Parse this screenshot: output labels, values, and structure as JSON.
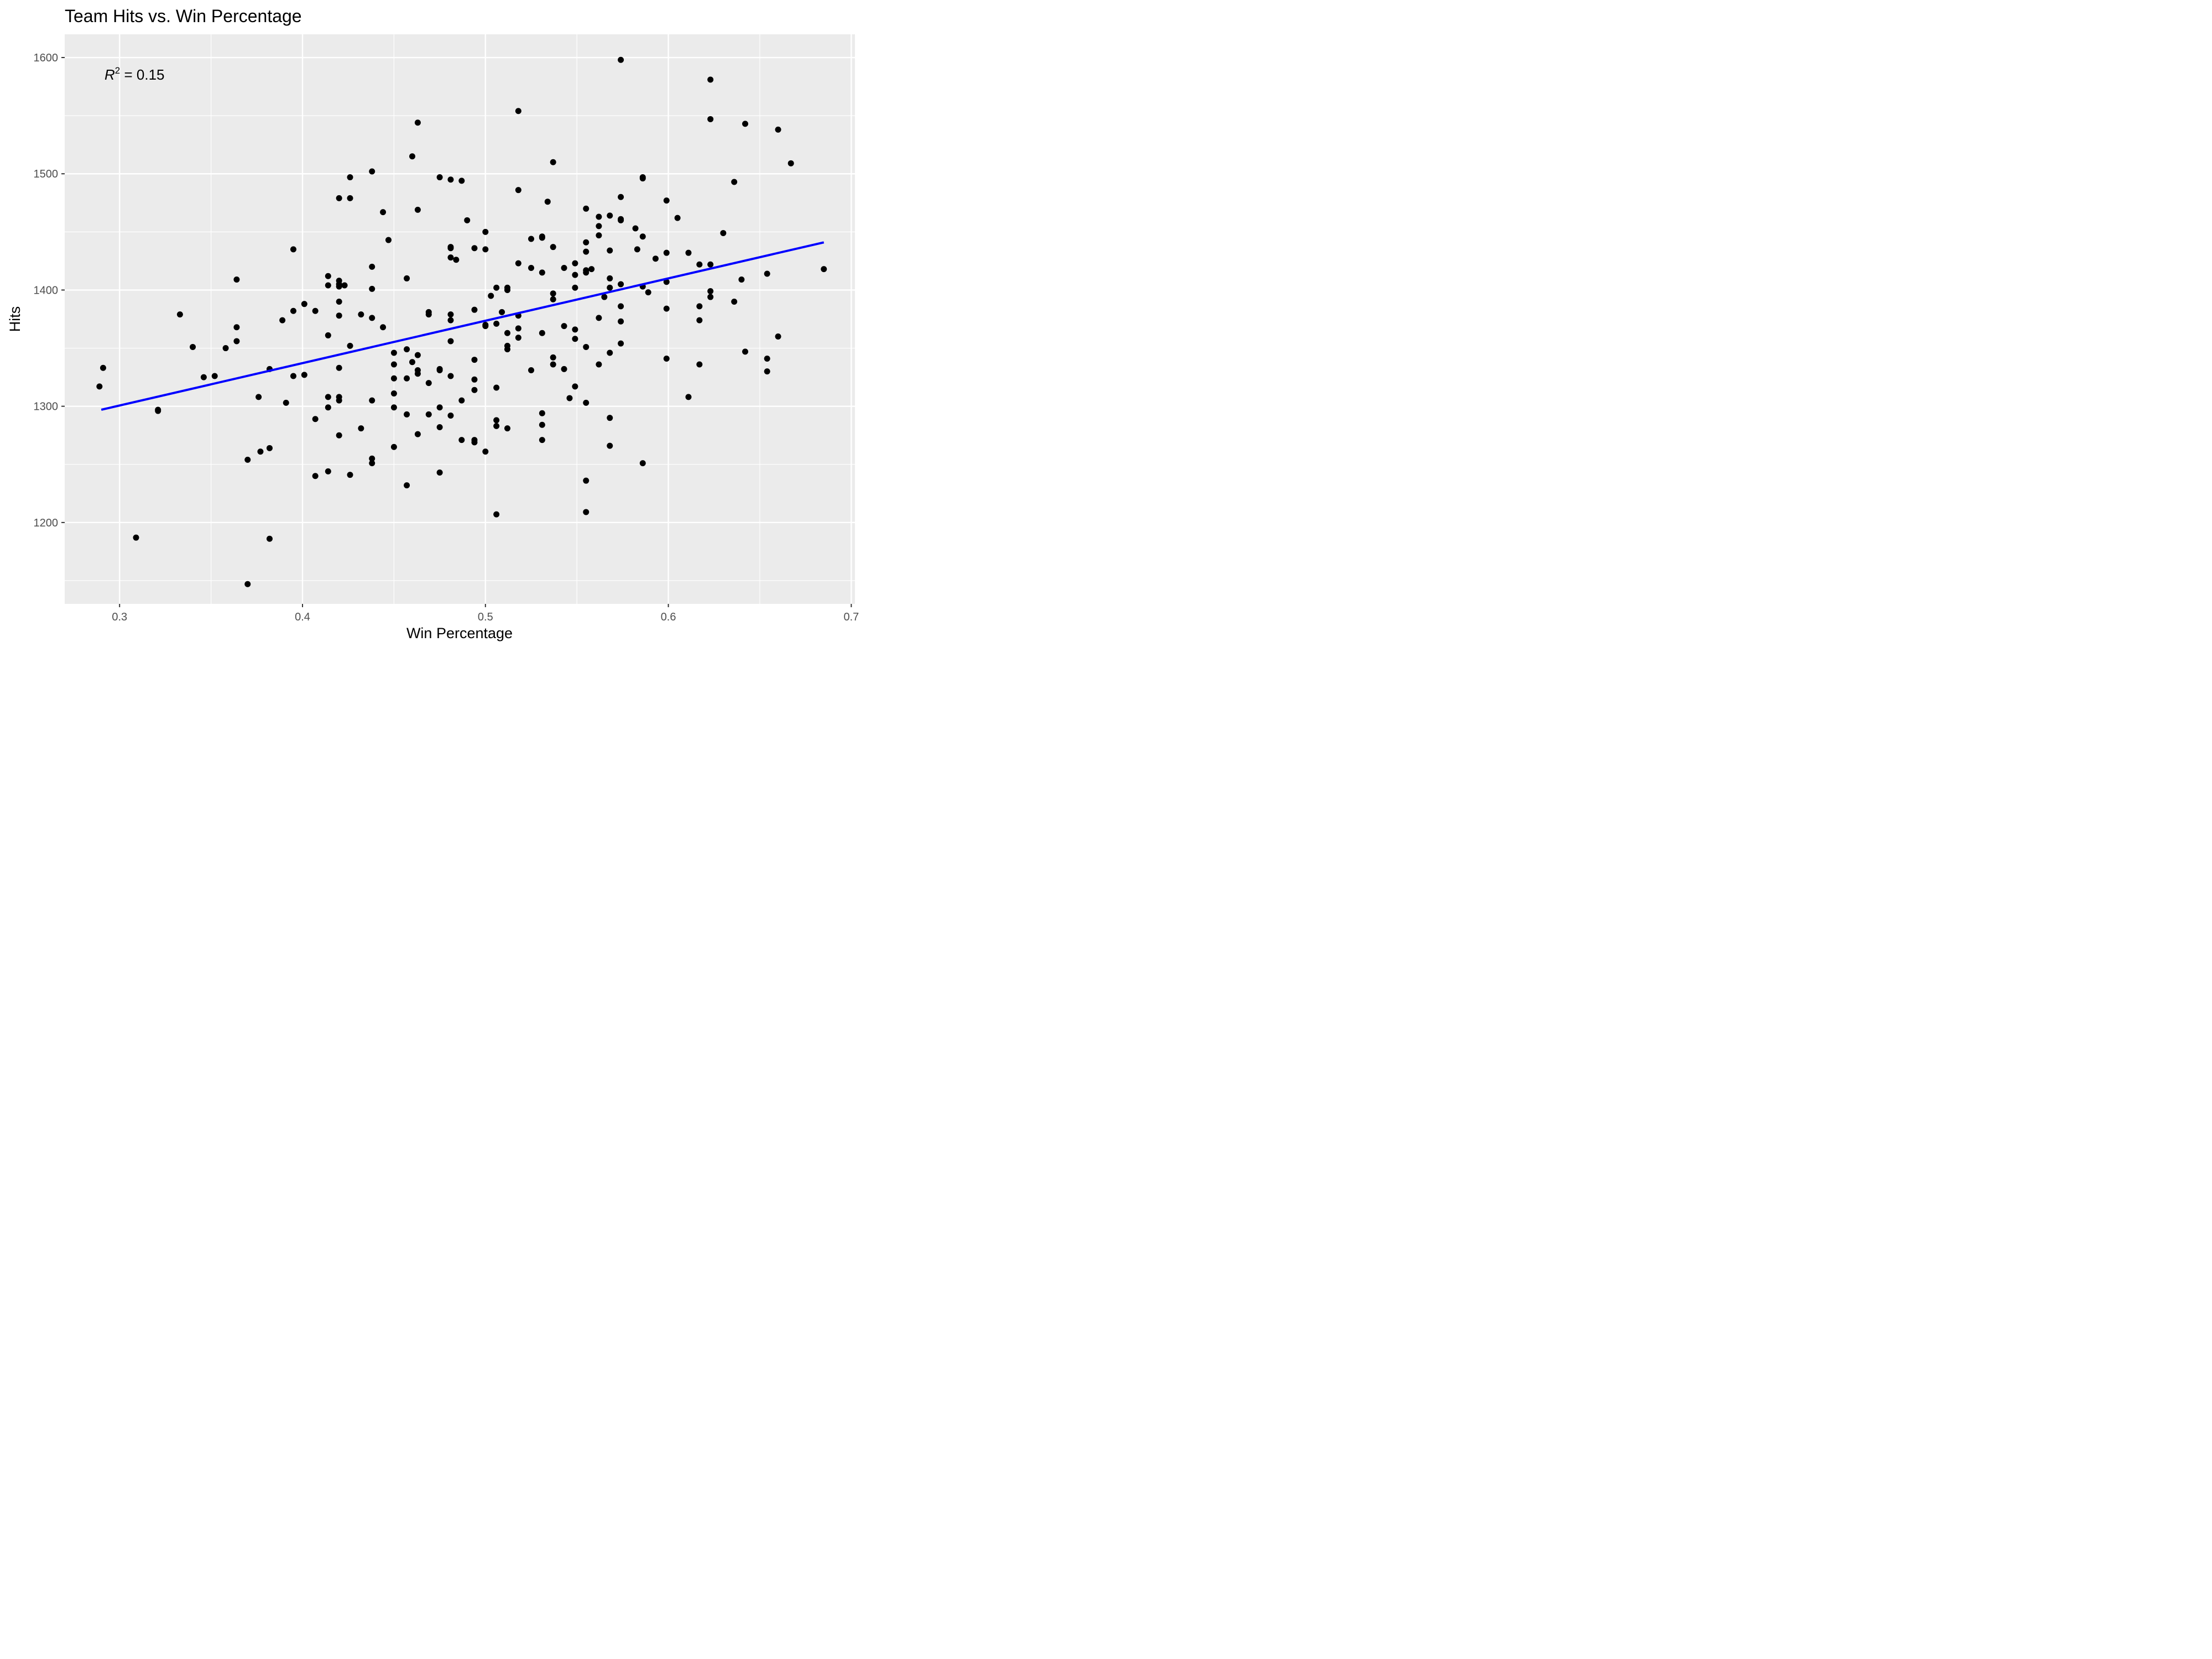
{
  "chart_data": {
    "type": "scatter",
    "title": "Team Hits vs. Win Percentage",
    "xlabel": "Win Percentage",
    "ylabel": "Hits",
    "xlim": [
      0.27,
      0.702
    ],
    "ylim": [
      1130,
      1620
    ],
    "xticks": [
      0.3,
      0.4,
      0.5,
      0.6,
      0.7
    ],
    "yticks": [
      1200,
      1300,
      1400,
      1500,
      1600
    ],
    "xtick_labels": [
      "0.3",
      "0.4",
      "0.5",
      "0.6",
      "0.7"
    ],
    "ytick_labels": [
      "1200",
      "1300",
      "1400",
      "1500",
      "1600"
    ],
    "grid": true,
    "annotation": {
      "r_symbol": "R",
      "superscript": "2",
      "text": " = 0.15"
    },
    "fit_line": {
      "x": [
        0.29,
        0.685
      ],
      "y": [
        1297,
        1441
      ],
      "color": "#0000ff"
    },
    "colors": {
      "panel": "#ebebeb",
      "grid": "#ffffff",
      "points": "#000000",
      "fit": "#0000ff"
    },
    "points": [
      [
        0.289,
        1317
      ],
      [
        0.291,
        1333
      ],
      [
        0.309,
        1187
      ],
      [
        0.321,
        1296
      ],
      [
        0.321,
        1297
      ],
      [
        0.333,
        1379
      ],
      [
        0.34,
        1351
      ],
      [
        0.346,
        1325
      ],
      [
        0.352,
        1326
      ],
      [
        0.358,
        1350
      ],
      [
        0.364,
        1409
      ],
      [
        0.364,
        1368
      ],
      [
        0.364,
        1356
      ],
      [
        0.37,
        1254
      ],
      [
        0.37,
        1147
      ],
      [
        0.376,
        1308
      ],
      [
        0.377,
        1261
      ],
      [
        0.382,
        1332
      ],
      [
        0.382,
        1264
      ],
      [
        0.382,
        1186
      ],
      [
        0.389,
        1374
      ],
      [
        0.391,
        1303
      ],
      [
        0.395,
        1435
      ],
      [
        0.395,
        1382
      ],
      [
        0.395,
        1326
      ],
      [
        0.401,
        1388
      ],
      [
        0.401,
        1327
      ],
      [
        0.407,
        1382
      ],
      [
        0.407,
        1289
      ],
      [
        0.407,
        1240
      ],
      [
        0.414,
        1412
      ],
      [
        0.414,
        1404
      ],
      [
        0.414,
        1361
      ],
      [
        0.414,
        1308
      ],
      [
        0.414,
        1299
      ],
      [
        0.414,
        1244
      ],
      [
        0.42,
        1479
      ],
      [
        0.42,
        1408
      ],
      [
        0.42,
        1405
      ],
      [
        0.42,
        1403
      ],
      [
        0.42,
        1390
      ],
      [
        0.42,
        1378
      ],
      [
        0.42,
        1333
      ],
      [
        0.42,
        1308
      ],
      [
        0.42,
        1305
      ],
      [
        0.42,
        1275
      ],
      [
        0.423,
        1404
      ],
      [
        0.426,
        1497
      ],
      [
        0.426,
        1479
      ],
      [
        0.426,
        1352
      ],
      [
        0.426,
        1241
      ],
      [
        0.432,
        1379
      ],
      [
        0.432,
        1281
      ],
      [
        0.438,
        1502
      ],
      [
        0.438,
        1420
      ],
      [
        0.438,
        1401
      ],
      [
        0.438,
        1376
      ],
      [
        0.438,
        1305
      ],
      [
        0.438,
        1255
      ],
      [
        0.438,
        1251
      ],
      [
        0.444,
        1467
      ],
      [
        0.444,
        1368
      ],
      [
        0.447,
        1443
      ],
      [
        0.45,
        1346
      ],
      [
        0.45,
        1336
      ],
      [
        0.45,
        1324
      ],
      [
        0.45,
        1311
      ],
      [
        0.45,
        1299
      ],
      [
        0.45,
        1265
      ],
      [
        0.457,
        1410
      ],
      [
        0.457,
        1349
      ],
      [
        0.457,
        1324
      ],
      [
        0.457,
        1293
      ],
      [
        0.457,
        1232
      ],
      [
        0.46,
        1515
      ],
      [
        0.46,
        1338
      ],
      [
        0.463,
        1544
      ],
      [
        0.463,
        1469
      ],
      [
        0.463,
        1344
      ],
      [
        0.463,
        1331
      ],
      [
        0.463,
        1328
      ],
      [
        0.463,
        1276
      ],
      [
        0.469,
        1381
      ],
      [
        0.469,
        1379
      ],
      [
        0.469,
        1320
      ],
      [
        0.469,
        1293
      ],
      [
        0.475,
        1497
      ],
      [
        0.475,
        1332
      ],
      [
        0.475,
        1331
      ],
      [
        0.475,
        1299
      ],
      [
        0.475,
        1282
      ],
      [
        0.475,
        1243
      ],
      [
        0.481,
        1495
      ],
      [
        0.481,
        1437
      ],
      [
        0.481,
        1436
      ],
      [
        0.481,
        1428
      ],
      [
        0.481,
        1379
      ],
      [
        0.481,
        1374
      ],
      [
        0.481,
        1356
      ],
      [
        0.481,
        1326
      ],
      [
        0.481,
        1292
      ],
      [
        0.484,
        1426
      ],
      [
        0.487,
        1494
      ],
      [
        0.487,
        1305
      ],
      [
        0.487,
        1271
      ],
      [
        0.49,
        1460
      ],
      [
        0.494,
        1436
      ],
      [
        0.494,
        1383
      ],
      [
        0.494,
        1340
      ],
      [
        0.494,
        1323
      ],
      [
        0.494,
        1314
      ],
      [
        0.494,
        1271
      ],
      [
        0.494,
        1269
      ],
      [
        0.5,
        1450
      ],
      [
        0.5,
        1435
      ],
      [
        0.5,
        1370
      ],
      [
        0.5,
        1369
      ],
      [
        0.5,
        1261
      ],
      [
        0.503,
        1395
      ],
      [
        0.506,
        1402
      ],
      [
        0.506,
        1371
      ],
      [
        0.506,
        1316
      ],
      [
        0.506,
        1288
      ],
      [
        0.506,
        1283
      ],
      [
        0.506,
        1207
      ],
      [
        0.509,
        1381
      ],
      [
        0.512,
        1402
      ],
      [
        0.512,
        1400
      ],
      [
        0.512,
        1363
      ],
      [
        0.512,
        1352
      ],
      [
        0.512,
        1349
      ],
      [
        0.512,
        1281
      ],
      [
        0.518,
        1554
      ],
      [
        0.518,
        1486
      ],
      [
        0.518,
        1423
      ],
      [
        0.518,
        1378
      ],
      [
        0.518,
        1367
      ],
      [
        0.518,
        1359
      ],
      [
        0.525,
        1444
      ],
      [
        0.525,
        1419
      ],
      [
        0.525,
        1331
      ],
      [
        0.531,
        1446
      ],
      [
        0.531,
        1445
      ],
      [
        0.531,
        1415
      ],
      [
        0.531,
        1363
      ],
      [
        0.531,
        1294
      ],
      [
        0.531,
        1284
      ],
      [
        0.531,
        1271
      ],
      [
        0.534,
        1476
      ],
      [
        0.537,
        1510
      ],
      [
        0.537,
        1437
      ],
      [
        0.537,
        1397
      ],
      [
        0.537,
        1392
      ],
      [
        0.537,
        1342
      ],
      [
        0.537,
        1336
      ],
      [
        0.543,
        1419
      ],
      [
        0.543,
        1369
      ],
      [
        0.543,
        1332
      ],
      [
        0.546,
        1307
      ],
      [
        0.549,
        1423
      ],
      [
        0.549,
        1413
      ],
      [
        0.549,
        1402
      ],
      [
        0.549,
        1366
      ],
      [
        0.549,
        1358
      ],
      [
        0.549,
        1317
      ],
      [
        0.555,
        1470
      ],
      [
        0.555,
        1441
      ],
      [
        0.555,
        1433
      ],
      [
        0.555,
        1417
      ],
      [
        0.555,
        1415
      ],
      [
        0.555,
        1351
      ],
      [
        0.555,
        1303
      ],
      [
        0.555,
        1236
      ],
      [
        0.555,
        1209
      ],
      [
        0.558,
        1418
      ],
      [
        0.562,
        1463
      ],
      [
        0.562,
        1455
      ],
      [
        0.562,
        1447
      ],
      [
        0.562,
        1376
      ],
      [
        0.562,
        1336
      ],
      [
        0.565,
        1394
      ],
      [
        0.568,
        1464
      ],
      [
        0.568,
        1434
      ],
      [
        0.568,
        1410
      ],
      [
        0.568,
        1402
      ],
      [
        0.568,
        1346
      ],
      [
        0.568,
        1290
      ],
      [
        0.568,
        1266
      ],
      [
        0.574,
        1598
      ],
      [
        0.574,
        1480
      ],
      [
        0.574,
        1461
      ],
      [
        0.574,
        1460
      ],
      [
        0.574,
        1405
      ],
      [
        0.574,
        1386
      ],
      [
        0.574,
        1373
      ],
      [
        0.574,
        1354
      ],
      [
        0.582,
        1453
      ],
      [
        0.583,
        1435
      ],
      [
        0.586,
        1497
      ],
      [
        0.586,
        1496
      ],
      [
        0.586,
        1446
      ],
      [
        0.586,
        1403
      ],
      [
        0.586,
        1251
      ],
      [
        0.589,
        1398
      ],
      [
        0.593,
        1427
      ],
      [
        0.599,
        1477
      ],
      [
        0.599,
        1432
      ],
      [
        0.599,
        1407
      ],
      [
        0.599,
        1384
      ],
      [
        0.599,
        1341
      ],
      [
        0.605,
        1462
      ],
      [
        0.611,
        1432
      ],
      [
        0.611,
        1308
      ],
      [
        0.617,
        1422
      ],
      [
        0.617,
        1386
      ],
      [
        0.617,
        1374
      ],
      [
        0.617,
        1336
      ],
      [
        0.623,
        1581
      ],
      [
        0.623,
        1547
      ],
      [
        0.623,
        1422
      ],
      [
        0.623,
        1399
      ],
      [
        0.623,
        1394
      ],
      [
        0.63,
        1449
      ],
      [
        0.636,
        1493
      ],
      [
        0.636,
        1390
      ],
      [
        0.64,
        1409
      ],
      [
        0.642,
        1543
      ],
      [
        0.642,
        1347
      ],
      [
        0.654,
        1414
      ],
      [
        0.654,
        1341
      ],
      [
        0.654,
        1330
      ],
      [
        0.66,
        1538
      ],
      [
        0.66,
        1360
      ],
      [
        0.667,
        1509
      ],
      [
        0.685,
        1418
      ]
    ]
  }
}
